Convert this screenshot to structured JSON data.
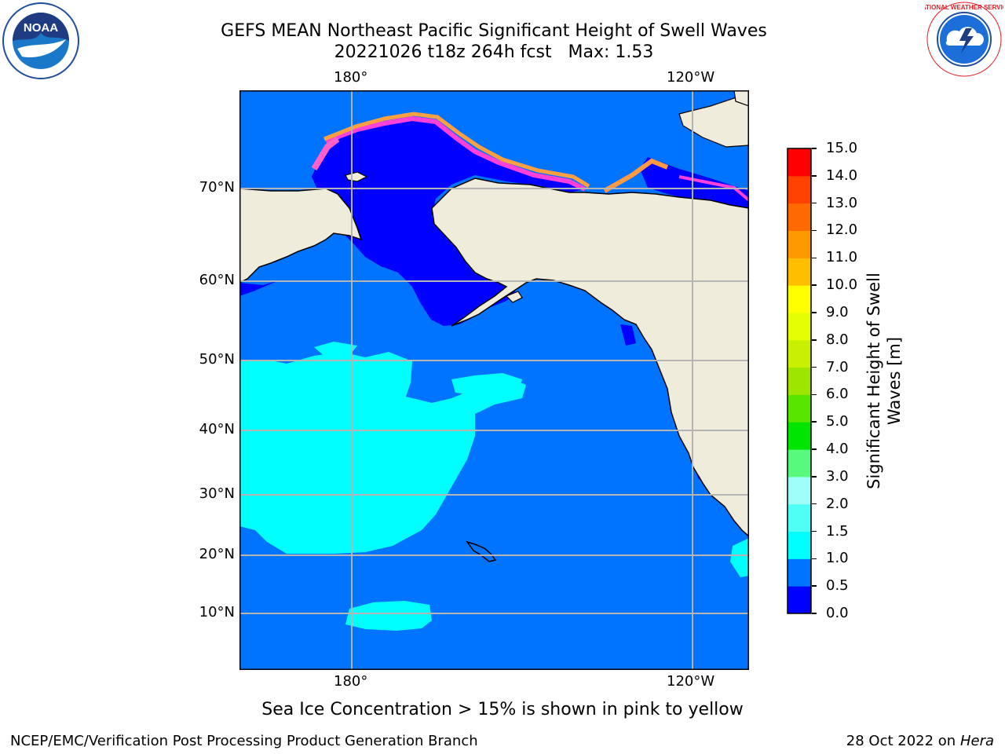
{
  "header": {
    "title_line1": "GEFS MEAN Northeast Pacific Significant Height of Swell Waves",
    "title_line2": "20221026 t18z 264h fcst   Max: 1.53"
  },
  "logos": {
    "left": {
      "name": "noaa-logo",
      "text": "NOAA"
    },
    "right": {
      "name": "national-weather-service-logo",
      "text": "NATIONAL WEATHER SERVICE"
    }
  },
  "map": {
    "lon_labels": [
      "180°",
      "120°W"
    ],
    "lat_labels": [
      "70°N",
      "60°N",
      "50°N",
      "40°N",
      "30°N",
      "20°N",
      "10°N"
    ],
    "colors": {
      "land": "#efecdb",
      "ocean_main": "#0073ff",
      "ocean_swell_high": "#00ffff",
      "ocean_low": "#0000ff",
      "grid": "#b5b5b5"
    }
  },
  "colorbar": {
    "label_line1": "Significant Height of Swell",
    "label_line2": "Waves [m]",
    "ticks": [
      "0.0",
      "0.5",
      "1.0",
      "1.5",
      "2.0",
      "3.0",
      "4.0",
      "5.0",
      "6.0",
      "7.0",
      "8.0",
      "9.0",
      "10.0",
      "11.0",
      "12.0",
      "13.0",
      "14.0",
      "15.0"
    ],
    "colors": [
      "#0000ff",
      "#0073ff",
      "#00ffff",
      "#4dfff5",
      "#9efff8",
      "#58fa7d",
      "#00e600",
      "#58e600",
      "#9ee600",
      "#c8f000",
      "#e6ff00",
      "#ffff00",
      "#ffbf00",
      "#ff9900",
      "#ff6a00",
      "#ff4000",
      "#ff0000"
    ]
  },
  "caption": "Sea Ice Concentration > 15% is shown in pink to yellow",
  "footer": {
    "left": "NCEP/EMC/Verification Post Processing Product Generation Branch",
    "right_prefix": "28 Oct 2022 on ",
    "right_host": "Hera"
  }
}
